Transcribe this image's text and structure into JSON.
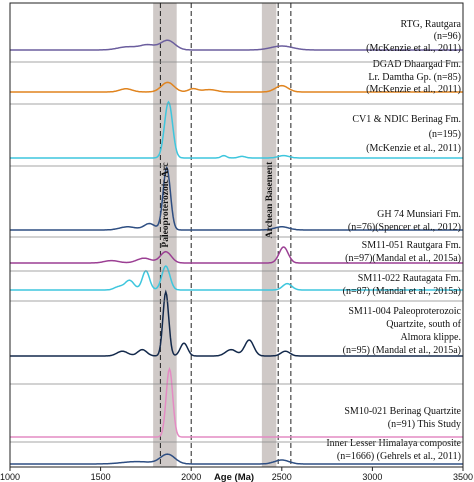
{
  "chart_data": {
    "type": "line",
    "subtype": "stacked probability density curves",
    "title": "",
    "xlabel": "Age (Ma)",
    "ylabel": "",
    "xlim": [
      1000,
      3500
    ],
    "xticks": [
      1000,
      1500,
      2000,
      2500,
      3000,
      3500
    ],
    "grid": false,
    "shaded_bands": [
      {
        "label": "Paleoproterozoic Arc",
        "range": [
          1790,
          1920
        ],
        "color": "#cfc9c7"
      },
      {
        "label": "Archean Basement",
        "range": [
          2390,
          2470
        ],
        "color": "#cfc9c7"
      }
    ],
    "dashed_lines": [
      1830,
      2000,
      2480,
      2550
    ],
    "series": [
      {
        "label_lines": [
          "RTG, Rautgara",
          "(n=96)",
          "(McKenzie et al., 2011)"
        ],
        "color": "#6b5e9e",
        "baseline": 0,
        "peaks": [
          [
            1650,
            4,
            55
          ],
          [
            1760,
            6,
            40
          ],
          [
            1870,
            12,
            40
          ],
          [
            2500,
            5,
            60
          ]
        ]
      },
      {
        "label_lines": [
          "DGAD Dhaargad Fm.",
          "Lr. Damtha Gp. (n=85)",
          "(McKenzie et al., 2011)"
        ],
        "color": "#e0841f",
        "baseline": 0,
        "peaks": [
          [
            1640,
            4,
            35
          ],
          [
            1870,
            12,
            35
          ],
          [
            2010,
            4,
            25
          ],
          [
            2100,
            3,
            40
          ],
          [
            2500,
            8,
            35
          ]
        ]
      },
      {
        "label_lines": [
          "CV1 & NDIC Berinag Fm.",
          "(n=195)",
          "(McKenzie et al., 2011)"
        ],
        "color": "#3ec6dd",
        "baseline": 0,
        "peaks": [
          [
            1875,
            70,
            22
          ],
          [
            2180,
            3,
            15
          ],
          [
            2280,
            2,
            20
          ],
          [
            2510,
            3,
            30
          ]
        ]
      },
      {
        "label_lines": [
          "GH 74 Munsiari Fm.",
          "(n=76)(Spencer et al., 2012)"
        ],
        "color": "#2e4e82",
        "baseline": 0,
        "peaks": [
          [
            1650,
            4,
            45
          ],
          [
            1770,
            8,
            30
          ],
          [
            1865,
            78,
            20
          ],
          [
            2500,
            4,
            40
          ]
        ]
      },
      {
        "label_lines": [
          "SM11-051 Rautgara Fm.",
          "(n=97)(Mandal et al., 2015a)"
        ],
        "color": "#9b3f93",
        "baseline": 0,
        "peaks": [
          [
            1560,
            3,
            40
          ],
          [
            1740,
            6,
            40
          ],
          [
            1860,
            14,
            30
          ],
          [
            2510,
            20,
            25
          ]
        ]
      },
      {
        "label_lines": [
          "SM11-022 Rautagata Fm.",
          "(n=87) (Mandal et al., 2015a)"
        ],
        "color": "#3ec6dd",
        "baseline": 0,
        "peaks": [
          [
            1600,
            4,
            25
          ],
          [
            1660,
            12,
            25
          ],
          [
            1750,
            24,
            20
          ],
          [
            1860,
            30,
            22
          ],
          [
            2530,
            8,
            25
          ]
        ]
      },
      {
        "label_lines": [
          "SM11-004 Paleoproterozoic",
          "Quartzite, south of",
          "Almora klippe.",
          "(n=95) (Mandal et al., 2015a)"
        ],
        "color": "#13294b",
        "baseline": 0,
        "peaks": [
          [
            1620,
            6,
            30
          ],
          [
            1730,
            8,
            25
          ],
          [
            1860,
            80,
            16
          ],
          [
            1960,
            16,
            20
          ],
          [
            2220,
            8,
            30
          ],
          [
            2320,
            20,
            25
          ],
          [
            2520,
            6,
            25
          ]
        ]
      },
      {
        "label_lines": [
          "SM10-021 Berinag Quartzite",
          "(n=91) This Study"
        ],
        "color": "#e48bc3",
        "baseline": 0,
        "peaks": [
          [
            1880,
            85,
            18
          ]
        ]
      },
      {
        "label_lines": [
          "Inner Lesser Himalaya composite",
          "(n=1666) (Gehrels et al., 2011)"
        ],
        "color": "#2e4e82",
        "baseline": 0,
        "peaks": [
          [
            1700,
            3,
            80
          ],
          [
            1870,
            12,
            40
          ],
          [
            2500,
            5,
            40
          ]
        ]
      }
    ]
  }
}
